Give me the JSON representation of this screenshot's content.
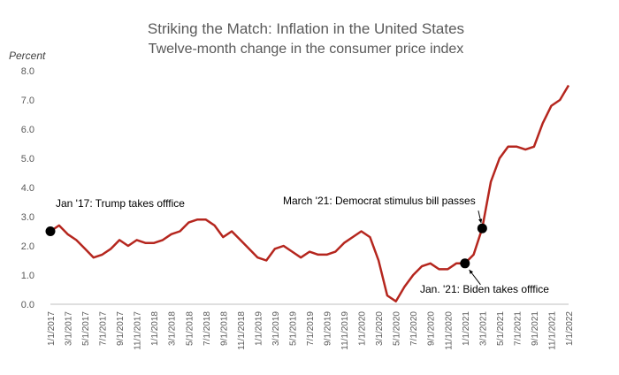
{
  "chart_data": {
    "type": "line",
    "title": "Striking the Match: Inflation in the United States",
    "subtitle": "Twelve-month change in the consumer price index",
    "ylabel": "Percent",
    "xlabel": "",
    "ylim": [
      0,
      8
    ],
    "yticks": [
      "0.0",
      "1.0",
      "2.0",
      "3.0",
      "4.0",
      "5.0",
      "6.0",
      "7.0",
      "8.0"
    ],
    "xticks": [
      "1/1/2017",
      "3/1/2017",
      "5/1/2017",
      "7/1/2017",
      "9/1/2017",
      "11/1/2017",
      "1/1/2018",
      "3/1/2018",
      "5/1/2018",
      "7/1/2018",
      "9/1/2018",
      "11/1/2018",
      "1/1/2019",
      "3/1/2019",
      "5/1/2019",
      "7/1/2019",
      "9/1/2019",
      "11/1/2019",
      "1/1/2020",
      "3/1/2020",
      "5/1/2020",
      "7/1/2020",
      "9/1/2020",
      "11/1/2020",
      "1/1/2021",
      "3/1/2021",
      "5/1/2021",
      "7/1/2021",
      "9/1/2021",
      "11/1/2021",
      "1/1/2022"
    ],
    "grid": false,
    "line_color": "#b5261e",
    "series": [
      {
        "x": [
          "2017-01",
          "2017-02",
          "2017-03",
          "2017-04",
          "2017-05",
          "2017-06",
          "2017-07",
          "2017-08",
          "2017-09",
          "2017-10",
          "2017-11",
          "2017-12",
          "2018-01",
          "2018-02",
          "2018-03",
          "2018-04",
          "2018-05",
          "2018-06",
          "2018-07",
          "2018-08",
          "2018-09",
          "2018-10",
          "2018-11",
          "2018-12",
          "2019-01",
          "2019-02",
          "2019-03",
          "2019-04",
          "2019-05",
          "2019-06",
          "2019-07",
          "2019-08",
          "2019-09",
          "2019-10",
          "2019-11",
          "2019-12",
          "2020-01",
          "2020-02",
          "2020-03",
          "2020-04",
          "2020-05",
          "2020-06",
          "2020-07",
          "2020-08",
          "2020-09",
          "2020-10",
          "2020-11",
          "2020-12",
          "2021-01",
          "2021-02",
          "2021-03",
          "2021-04",
          "2021-05",
          "2021-06",
          "2021-07",
          "2021-08",
          "2021-09",
          "2021-10",
          "2021-11",
          "2021-12",
          "2022-01"
        ],
        "values": [
          2.5,
          2.7,
          2.4,
          2.2,
          1.9,
          1.6,
          1.7,
          1.9,
          2.2,
          2.0,
          2.2,
          2.1,
          2.1,
          2.2,
          2.4,
          2.5,
          2.8,
          2.9,
          2.9,
          2.7,
          2.3,
          2.5,
          2.2,
          1.9,
          1.6,
          1.5,
          1.9,
          2.0,
          1.8,
          1.6,
          1.8,
          1.7,
          1.7,
          1.8,
          2.1,
          2.3,
          2.5,
          2.3,
          1.5,
          0.3,
          0.1,
          0.6,
          1.0,
          1.3,
          1.4,
          1.2,
          1.2,
          1.4,
          1.4,
          1.7,
          2.6,
          4.2,
          5.0,
          5.4,
          5.4,
          5.3,
          5.4,
          6.2,
          6.8,
          7.0,
          7.5
        ]
      }
    ],
    "markers": [
      {
        "x": "2017-01",
        "y": 2.5,
        "label": "Jan '17: Trump takes offfice"
      },
      {
        "x": "2021-01",
        "y": 1.4,
        "label": "Jan. '21: Biden takes offfice"
      },
      {
        "x": "2021-03",
        "y": 2.6,
        "label": "March '21: Democrat stimulus bill passes"
      }
    ]
  }
}
